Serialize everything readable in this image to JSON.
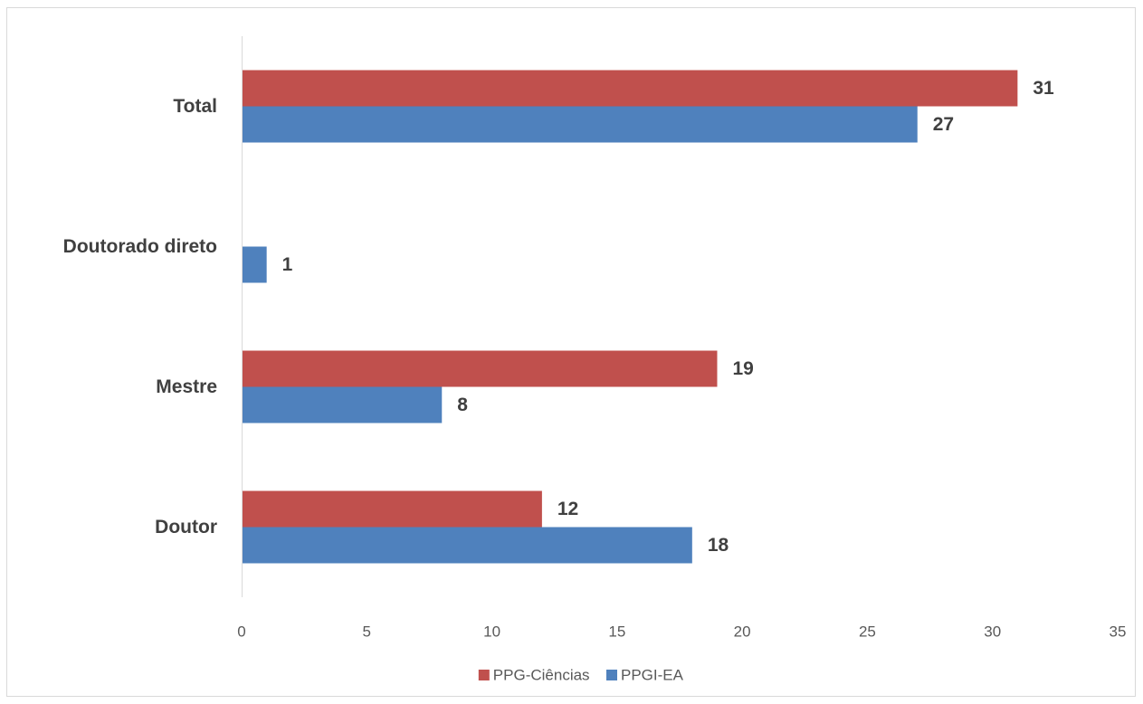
{
  "chart_data": {
    "type": "bar",
    "orientation": "horizontal",
    "categories": [
      "Total",
      "Doutorado direto",
      "Mestre",
      "Doutor"
    ],
    "series": [
      {
        "name": "PPG-Ciências",
        "color": "#c0504d",
        "values": [
          31,
          null,
          19,
          12
        ]
      },
      {
        "name": "PPGI-EA",
        "color": "#4f81bd",
        "values": [
          27,
          1,
          8,
          18
        ]
      }
    ],
    "xlim": [
      0,
      35
    ],
    "xticks": [
      0,
      5,
      10,
      15,
      20,
      25,
      30,
      35
    ],
    "title": "",
    "xlabel": "",
    "ylabel": "",
    "grid": false,
    "legend": "bottom",
    "data_labels": true
  }
}
